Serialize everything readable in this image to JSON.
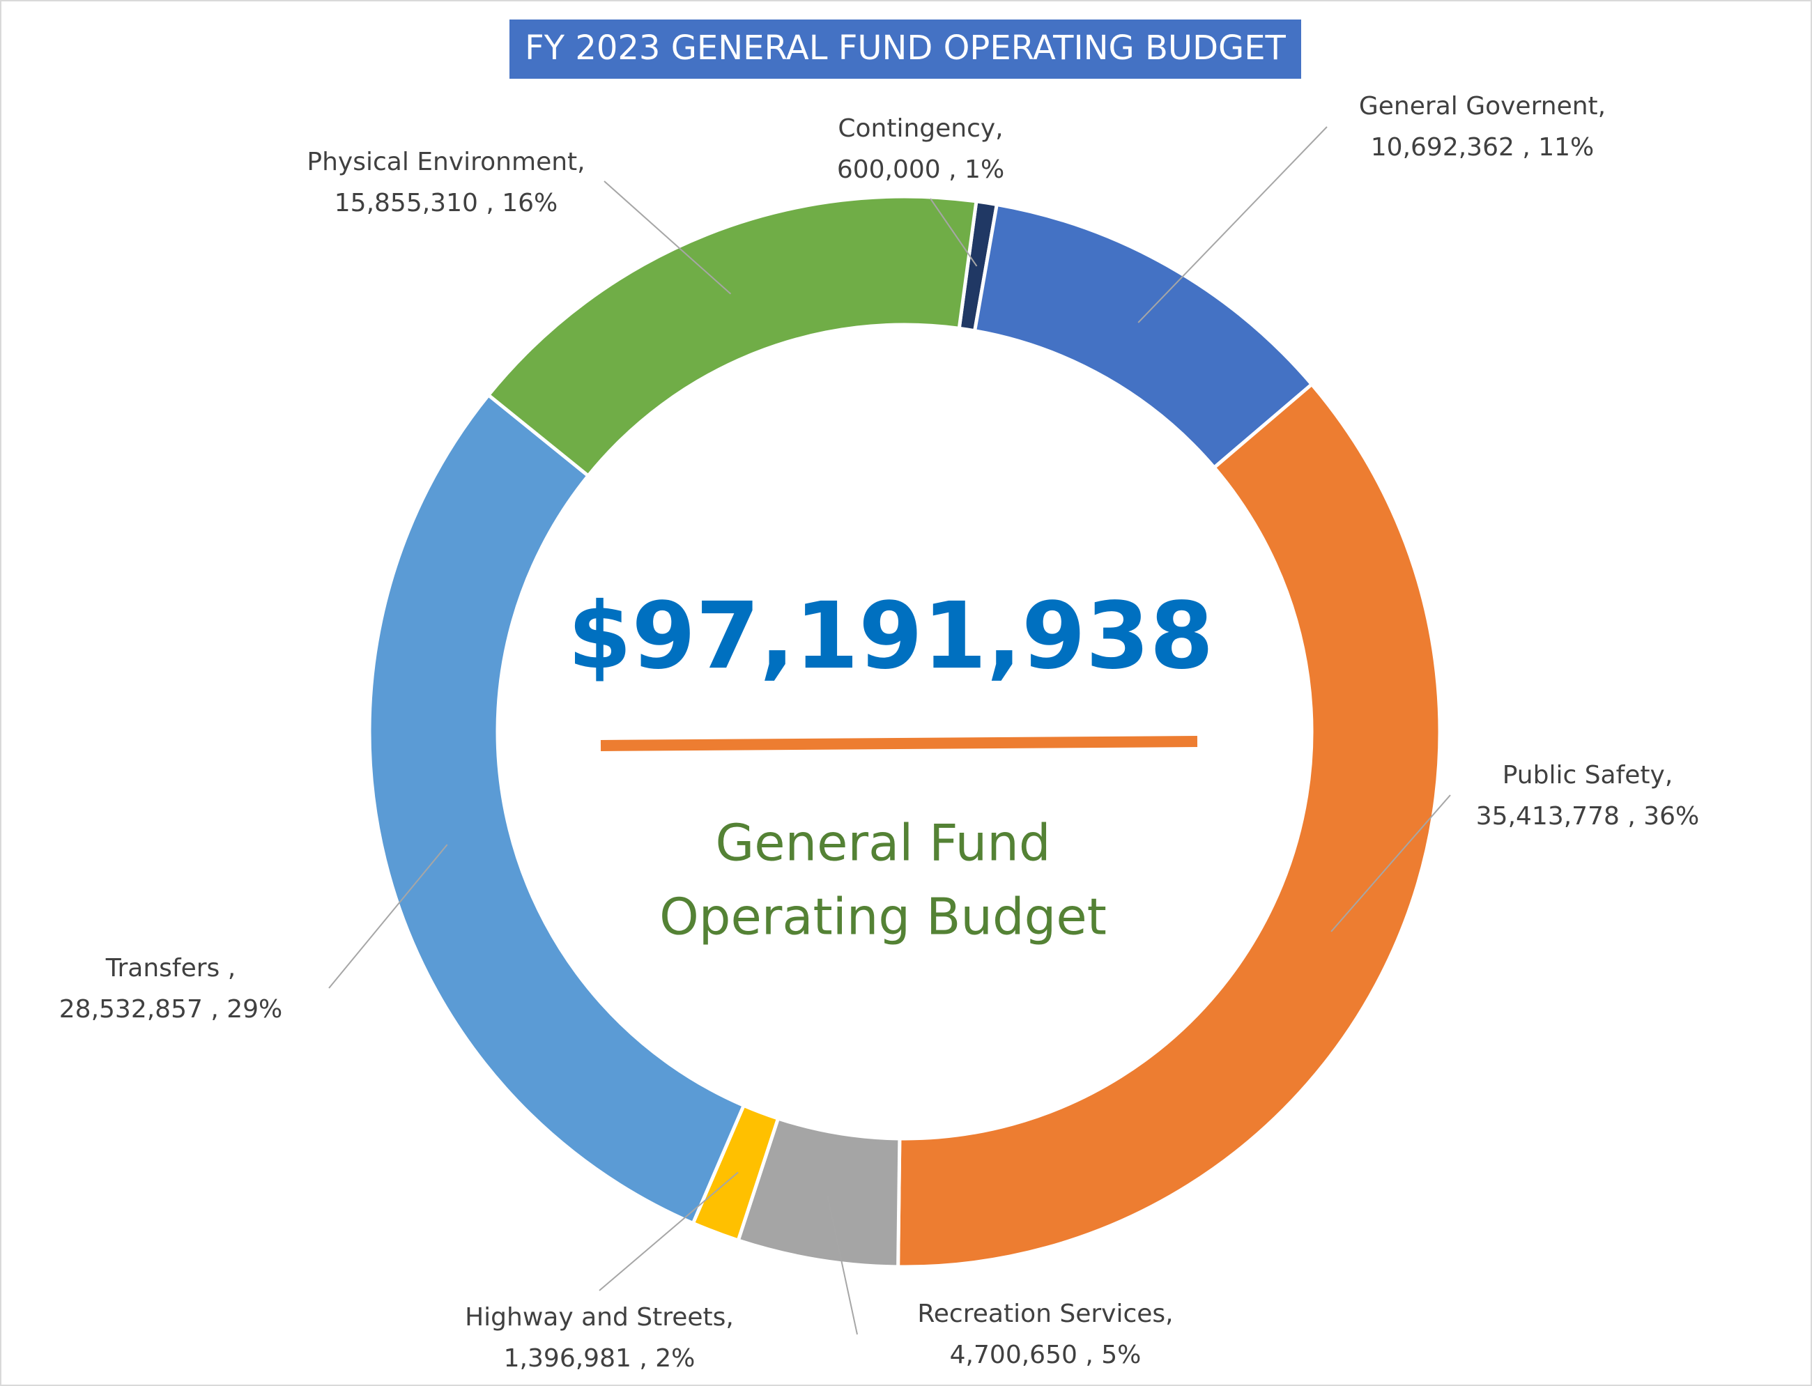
{
  "chart_data": {
    "type": "donut",
    "title": "FY 2023 GENERAL FUND OPERATING BUDGET",
    "center_label": "$97,191,938",
    "center_text": [
      "General Fund",
      "Operating Budget"
    ],
    "categories": [
      "Contingency,",
      "General Governent,",
      "Public Safety,",
      "Recreation Services,",
      "Highway and Streets,",
      "Transfers ,",
      "Physical Environment,"
    ],
    "values": [
      600000,
      10692362,
      35413778,
      4700650,
      1396981,
      28532857,
      15855310
    ],
    "value_labels": [
      "600,000 , 1%",
      "10,692,362 , 11%",
      "35,413,778 , 36%",
      "4,700,650 , 5%",
      "1,396,981 , 2%",
      "28,532,857 , 29%",
      "15,855,310 , 16%"
    ],
    "colors": [
      "#203864",
      "#4472c4",
      "#ed7d31",
      "#a5a5a5",
      "#ffc000",
      "#5b9bd5",
      "#70ad47"
    ]
  }
}
